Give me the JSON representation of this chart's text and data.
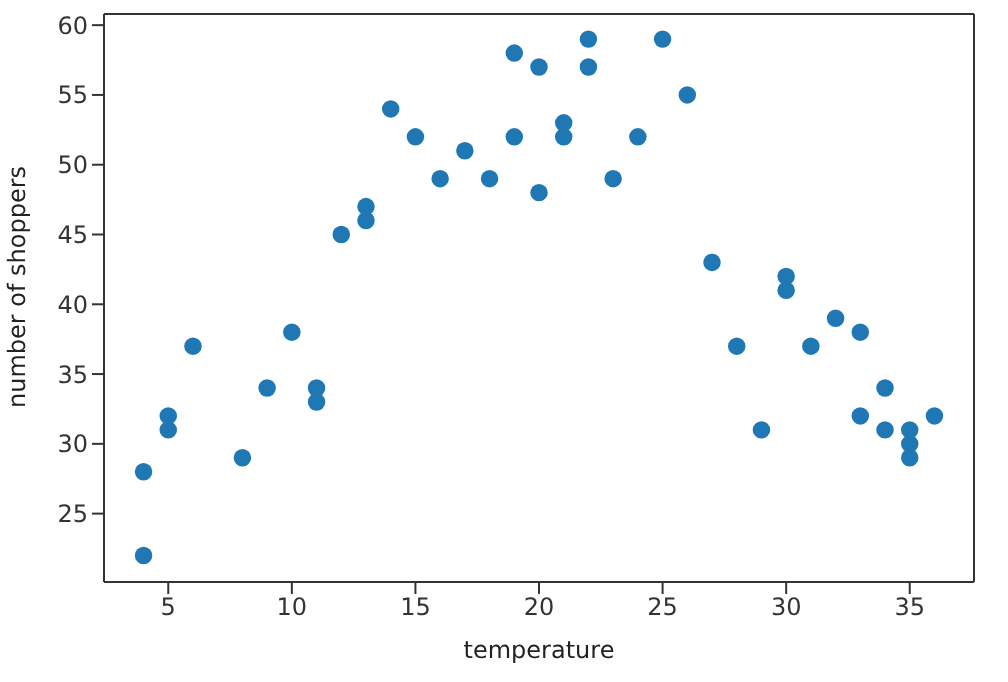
{
  "chart_data": {
    "type": "scatter",
    "xlabel": "temperature",
    "ylabel": "number of shoppers",
    "xlim": [
      2.4,
      37.6
    ],
    "ylim": [
      20.1,
      60.8
    ],
    "xticks": [
      5,
      10,
      15,
      20,
      25,
      30,
      35
    ],
    "yticks": [
      25,
      30,
      35,
      40,
      45,
      50,
      55,
      60
    ],
    "legend": false,
    "marker": "circle",
    "series": [
      {
        "color": "#1f77b4",
        "x": [
          4,
          4,
          5,
          5,
          6,
          8,
          9,
          10,
          11,
          11,
          12,
          13,
          13,
          14,
          15,
          16,
          17,
          18,
          19,
          19,
          20,
          20,
          21,
          21,
          22,
          22,
          23,
          24,
          25,
          26,
          27,
          28,
          29,
          30,
          30,
          31,
          32,
          33,
          33,
          34,
          34,
          35,
          35,
          35,
          36
        ],
        "values": [
          28,
          22,
          32,
          31,
          37,
          29,
          34,
          38,
          34,
          33,
          45,
          47,
          46,
          54,
          52,
          49,
          51,
          49,
          58,
          52,
          57,
          48,
          53,
          52,
          59,
          57,
          49,
          52,
          59,
          55,
          43,
          37,
          31,
          42,
          41,
          37,
          39,
          38,
          32,
          34,
          31,
          31,
          30,
          29,
          32
        ]
      }
    ]
  }
}
